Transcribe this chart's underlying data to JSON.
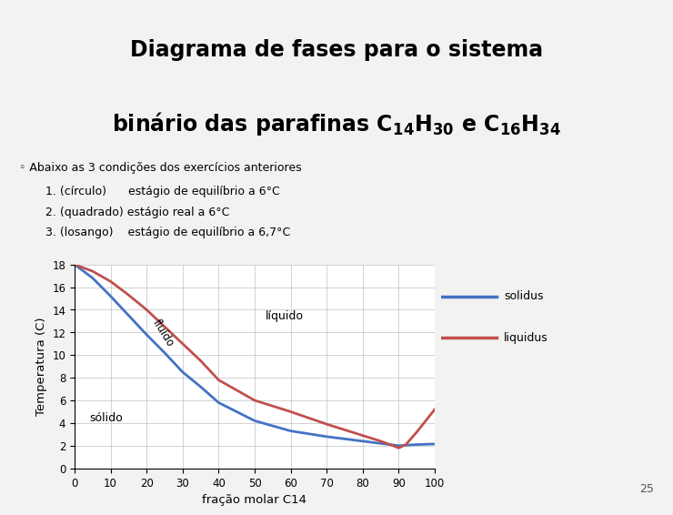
{
  "bullet": "◦ Abaixo as 3 condições dos exercícios anteriores",
  "item1": "1. (círculo)      estágio de equilíbrio a 6°C",
  "item2": "2. (quadrado) estágio real a 6°C",
  "item3": "3. (losango)    estágio de equilíbrio a 6,7°C",
  "xlabel": "fração molar C14",
  "ylabel": "Temperatura (C)",
  "xlim": [
    0,
    100
  ],
  "ylim": [
    0,
    18
  ],
  "xticks": [
    0,
    10,
    20,
    30,
    40,
    50,
    60,
    70,
    80,
    90,
    100
  ],
  "yticks": [
    0,
    2,
    4,
    6,
    8,
    10,
    12,
    14,
    16,
    18
  ],
  "solidus_x": [
    0,
    5,
    10,
    15,
    20,
    25,
    30,
    35,
    40,
    50,
    60,
    70,
    80,
    85,
    90,
    95,
    100
  ],
  "solidus_y": [
    18.0,
    16.8,
    15.2,
    13.5,
    11.8,
    10.2,
    8.5,
    7.2,
    5.8,
    4.2,
    3.3,
    2.8,
    2.4,
    2.2,
    2.0,
    2.1,
    2.15
  ],
  "liquidus_x": [
    0,
    5,
    10,
    15,
    20,
    25,
    30,
    35,
    40,
    50,
    60,
    70,
    80,
    85,
    88,
    90,
    92,
    95,
    100
  ],
  "liquidus_y": [
    18.0,
    17.4,
    16.5,
    15.3,
    14.0,
    12.5,
    11.0,
    9.5,
    7.8,
    6.0,
    5.0,
    3.9,
    2.9,
    2.4,
    2.05,
    1.8,
    2.1,
    3.2,
    5.2
  ],
  "solidus_color": "#4472C4",
  "liquidus_color": "#C0504D",
  "grid_color": "#C0C0C0",
  "label_liquidus": "liquidus",
  "label_solidus": "solidus",
  "label_liquido": "líquido",
  "label_solido": "sólido",
  "label_fluido": "fluído",
  "title_bg": "#B4C7D9",
  "page_bg": "#F2F2F2",
  "page_num": "25"
}
